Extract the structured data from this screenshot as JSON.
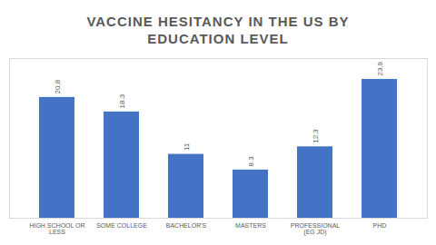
{
  "chart_data": {
    "type": "bar",
    "title": "VACCINE HESITANCY IN THE US BY EDUCATION LEVEL",
    "categories": [
      "HIGH SCHOOL OR LESS",
      "SOME COLLEGE",
      "BACHELOR'S",
      "MASTERS",
      "PROFESSIONAL (EG JD)",
      "PHD"
    ],
    "values": [
      20.8,
      18.3,
      11,
      8.3,
      12.3,
      23.9
    ],
    "color": "#4472c4",
    "ylim": [
      0,
      27.5
    ],
    "data_labels": true,
    "tick_labels": "x"
  }
}
